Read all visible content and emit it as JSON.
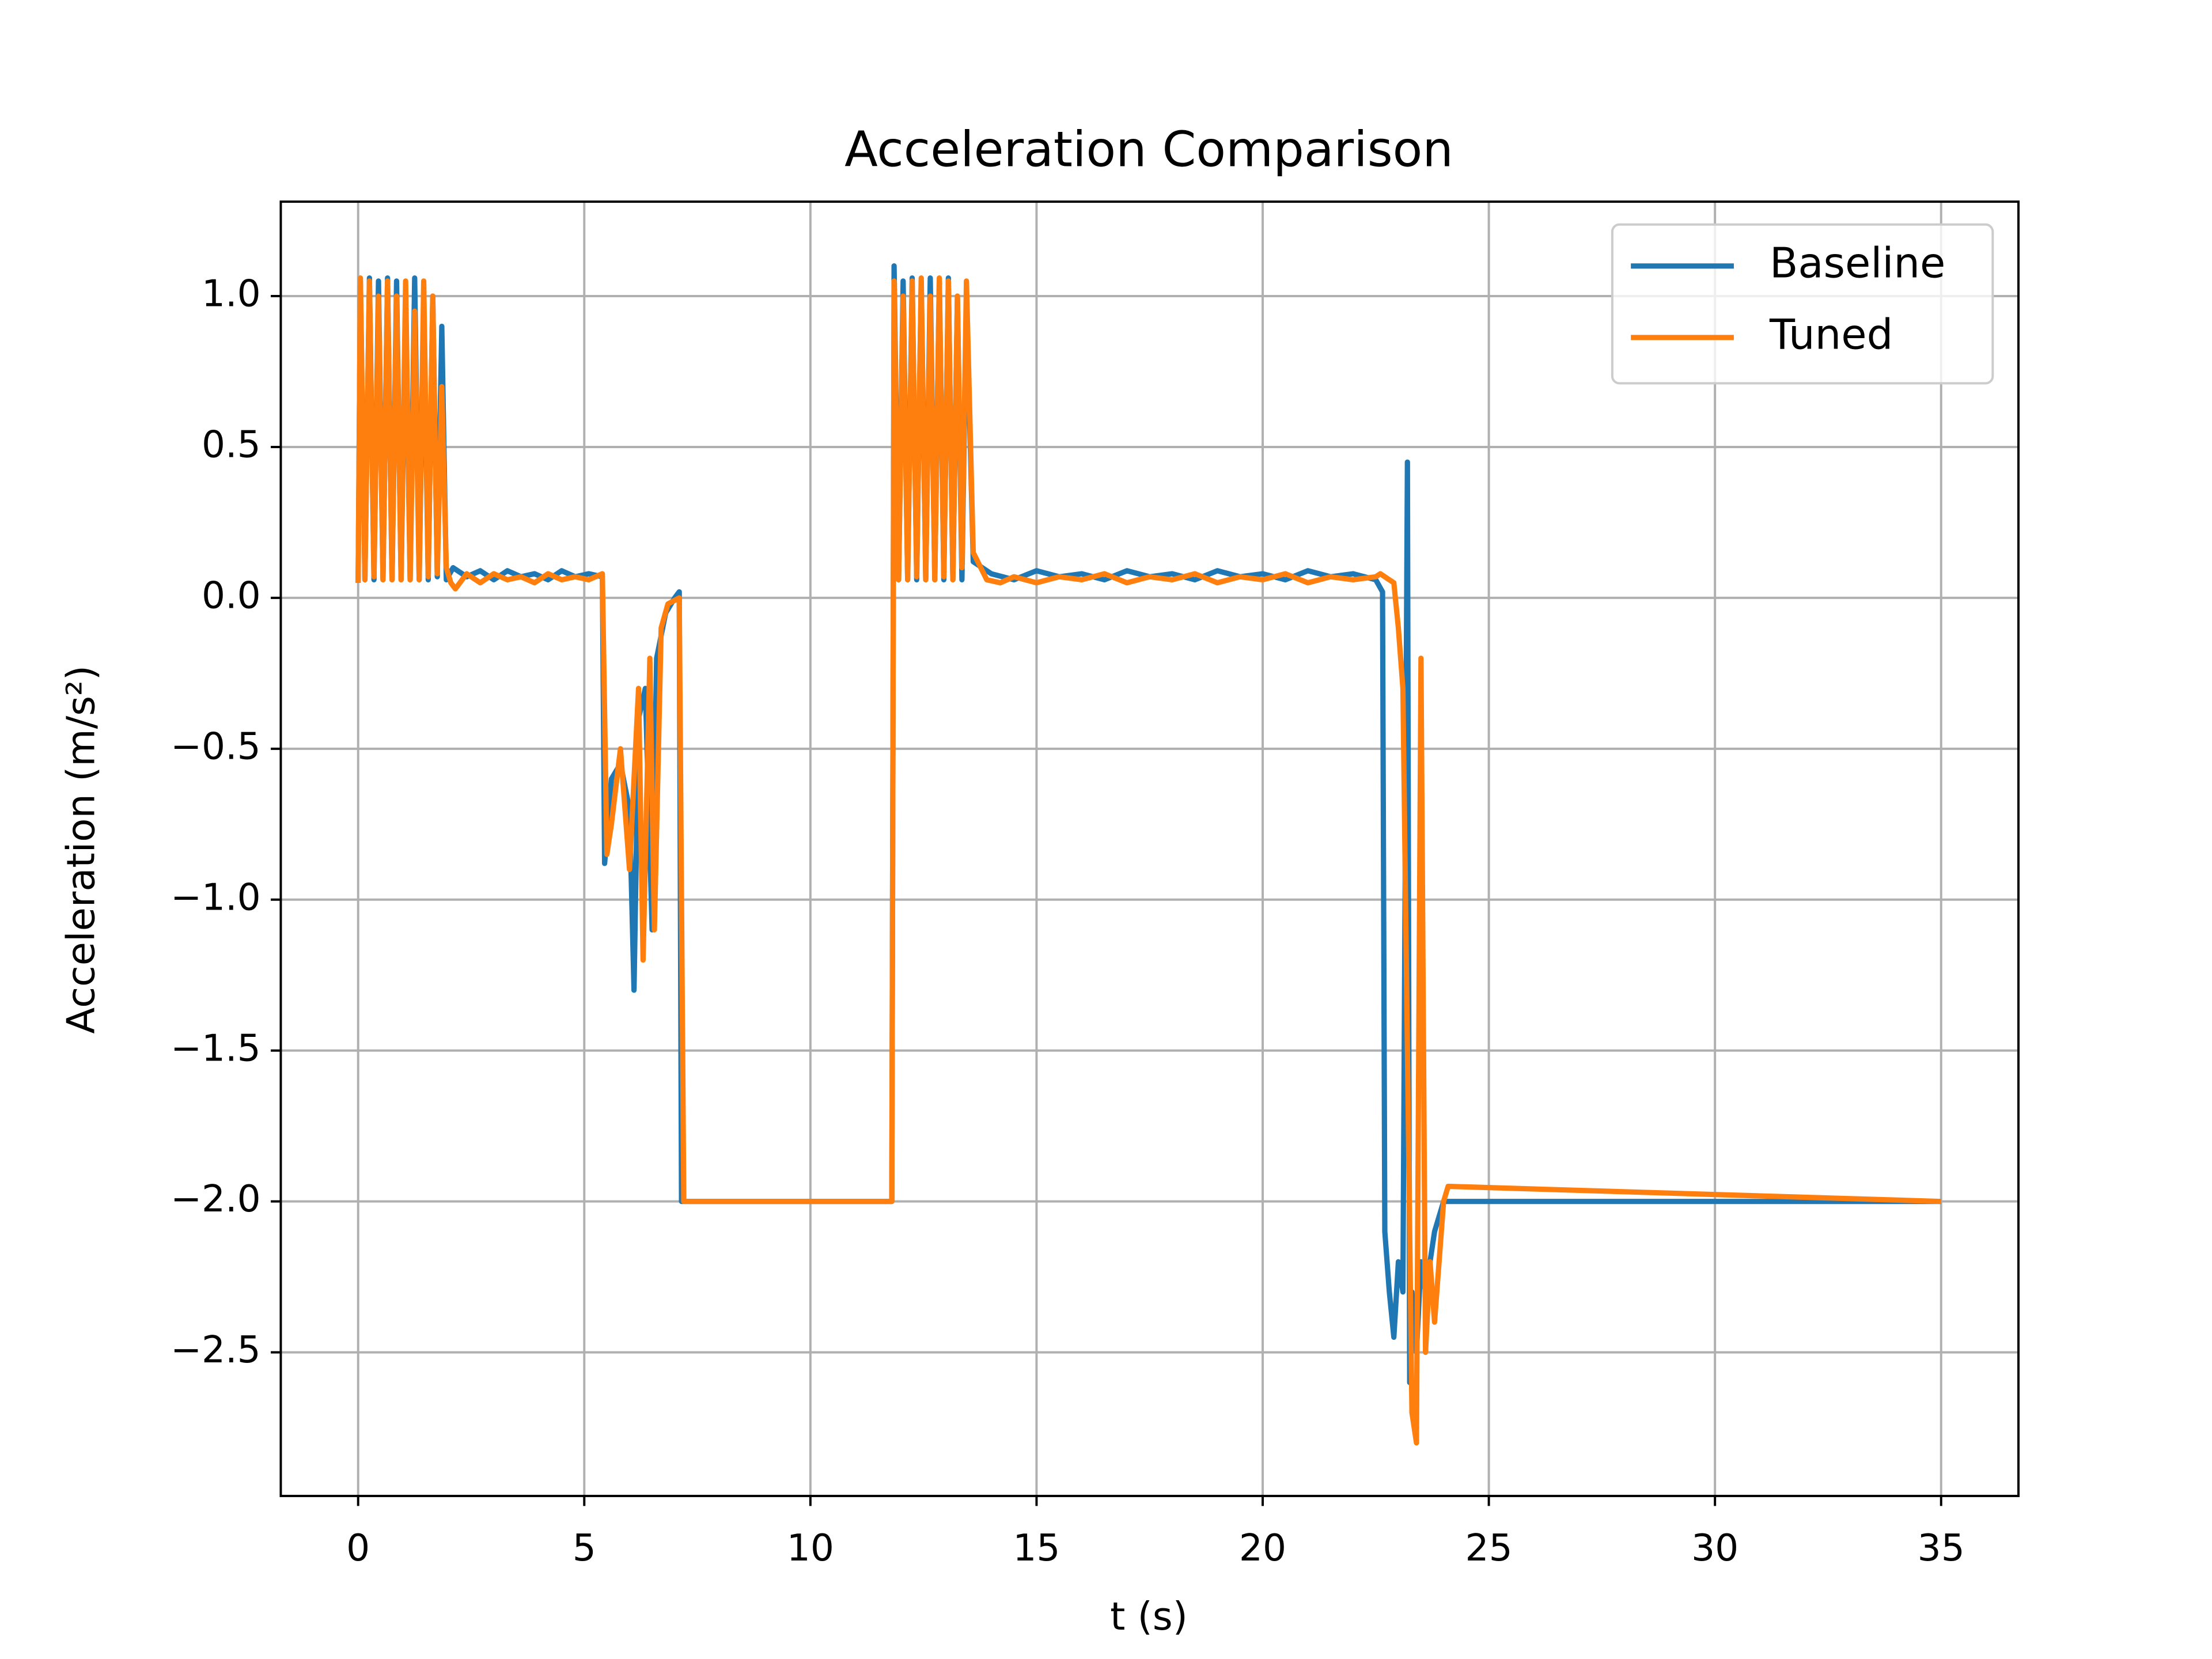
{
  "chart_data": {
    "type": "line",
    "title": "Acceleration Comparison",
    "x_label": "t (s)",
    "y_label": "Acceleration (m/s²)",
    "xlim": [
      -1.71,
      36.71
    ],
    "ylim": [
      -2.976,
      1.313
    ],
    "xticks": [
      0,
      5,
      10,
      15,
      20,
      25,
      30,
      35
    ],
    "yticks": [
      {
        "value": -2.5,
        "label": "−2.5"
      },
      {
        "value": -2.0,
        "label": "−2.0"
      },
      {
        "value": -1.5,
        "label": "−1.5"
      },
      {
        "value": -1.0,
        "label": "−1.0"
      },
      {
        "value": -0.5,
        "label": "−0.5"
      },
      {
        "value": 0.0,
        "label": "0.0"
      },
      0.5,
      {
        "value": 1.0,
        "label": "1.0"
      }
    ],
    "grid": true,
    "legend": "upper right",
    "series": [
      {
        "name": "Baseline",
        "color": "#1f77b4",
        "x": [
          0,
          0.05,
          0.15,
          0.25,
          0.35,
          0.45,
          0.55,
          0.65,
          0.75,
          0.85,
          0.95,
          1.05,
          1.15,
          1.25,
          1.35,
          1.45,
          1.55,
          1.65,
          1.75,
          1.85,
          1.95,
          2.1,
          2.4,
          2.7,
          3.0,
          3.3,
          3.6,
          3.9,
          4.2,
          4.5,
          4.8,
          5.1,
          5.4,
          5.45,
          5.6,
          5.8,
          6.0,
          6.1,
          6.2,
          6.35,
          6.5,
          6.6,
          6.8,
          7.0,
          7.1,
          7.15,
          7.2,
          11.8,
          11.85,
          11.95,
          12.05,
          12.15,
          12.25,
          12.35,
          12.45,
          12.55,
          12.65,
          12.75,
          12.85,
          12.95,
          13.05,
          13.15,
          13.25,
          13.35,
          13.45,
          13.6,
          14.0,
          14.5,
          15.0,
          15.5,
          16.0,
          16.5,
          17.0,
          17.5,
          18.0,
          18.5,
          19.0,
          19.5,
          20.0,
          20.5,
          21.0,
          21.5,
          22.0,
          22.5,
          22.65,
          22.7,
          22.8,
          22.9,
          23.0,
          23.1,
          23.2,
          23.25,
          23.3,
          23.4,
          23.5,
          23.6,
          23.8,
          24.0,
          35.0
        ],
        "values": [
          0.05,
          1.05,
          0.06,
          1.06,
          0.06,
          1.05,
          0.06,
          1.06,
          0.06,
          1.05,
          0.06,
          1.0,
          0.06,
          1.06,
          0.06,
          1.0,
          0.06,
          1.0,
          0.07,
          0.9,
          0.06,
          0.1,
          0.07,
          0.09,
          0.06,
          0.09,
          0.07,
          0.08,
          0.06,
          0.09,
          0.07,
          0.08,
          0.07,
          -0.88,
          -0.6,
          -0.55,
          -0.7,
          -1.3,
          -0.4,
          -0.3,
          -1.1,
          -0.2,
          -0.05,
          0.0,
          0.02,
          -2.0,
          -2.0,
          -2.0,
          1.1,
          0.06,
          1.05,
          0.06,
          1.06,
          0.06,
          1.05,
          0.06,
          1.06,
          0.06,
          1.05,
          0.06,
          1.06,
          0.06,
          1.0,
          0.06,
          1.0,
          0.12,
          0.08,
          0.06,
          0.09,
          0.07,
          0.08,
          0.06,
          0.09,
          0.07,
          0.08,
          0.06,
          0.09,
          0.07,
          0.08,
          0.06,
          0.09,
          0.07,
          0.08,
          0.06,
          0.02,
          -2.1,
          -2.3,
          -2.45,
          -2.2,
          -2.3,
          0.45,
          -2.6,
          -2.3,
          -2.5,
          -2.2,
          -2.3,
          -2.1,
          -2.0,
          -2.0
        ]
      },
      {
        "name": "Tuned",
        "color": "#ff7f0e",
        "x": [
          0,
          0.05,
          0.15,
          0.25,
          0.35,
          0.45,
          0.55,
          0.65,
          0.75,
          0.85,
          0.95,
          1.05,
          1.15,
          1.25,
          1.35,
          1.45,
          1.55,
          1.65,
          1.75,
          1.85,
          1.95,
          2.05,
          2.15,
          2.4,
          2.7,
          3.0,
          3.3,
          3.6,
          3.9,
          4.2,
          4.5,
          4.8,
          5.1,
          5.4,
          5.5,
          5.6,
          5.8,
          6.0,
          6.2,
          6.3,
          6.45,
          6.55,
          6.7,
          6.85,
          7.1,
          7.2,
          11.8,
          11.85,
          11.95,
          12.05,
          12.15,
          12.25,
          12.35,
          12.45,
          12.55,
          12.65,
          12.75,
          12.85,
          12.95,
          13.05,
          13.15,
          13.25,
          13.35,
          13.45,
          13.6,
          13.9,
          14.2,
          14.5,
          15.0,
          15.5,
          16.0,
          16.5,
          17.0,
          17.5,
          18.0,
          18.5,
          19.0,
          19.5,
          20.0,
          20.5,
          21.0,
          21.5,
          22.0,
          22.5,
          22.6,
          22.9,
          23.0,
          23.1,
          23.2,
          23.3,
          23.4,
          23.5,
          23.6,
          23.7,
          23.8,
          24.0,
          24.1,
          35.0
        ],
        "values": [
          0.05,
          1.06,
          0.06,
          1.05,
          0.07,
          1.0,
          0.06,
          1.05,
          0.06,
          1.0,
          0.06,
          1.05,
          0.06,
          0.95,
          0.06,
          1.05,
          0.07,
          1.0,
          0.08,
          0.7,
          0.1,
          0.05,
          0.03,
          0.08,
          0.05,
          0.08,
          0.06,
          0.07,
          0.05,
          0.08,
          0.06,
          0.07,
          0.06,
          0.08,
          -0.85,
          -0.75,
          -0.5,
          -0.9,
          -0.3,
          -1.2,
          -0.2,
          -1.1,
          -0.1,
          -0.02,
          0.0,
          -2.0,
          -2.0,
          1.05,
          0.06,
          1.0,
          0.06,
          1.05,
          0.07,
          1.06,
          0.06,
          1.0,
          0.06,
          1.06,
          0.07,
          1.05,
          0.06,
          1.0,
          0.1,
          1.05,
          0.15,
          0.06,
          0.05,
          0.07,
          0.05,
          0.07,
          0.06,
          0.08,
          0.05,
          0.07,
          0.06,
          0.08,
          0.05,
          0.07,
          0.06,
          0.08,
          0.05,
          0.07,
          0.06,
          0.07,
          0.08,
          0.05,
          -0.1,
          -0.3,
          -1.5,
          -2.7,
          -2.8,
          -0.2,
          -2.5,
          -2.2,
          -2.4,
          -2.0,
          -1.95,
          -2.0
        ]
      }
    ]
  }
}
